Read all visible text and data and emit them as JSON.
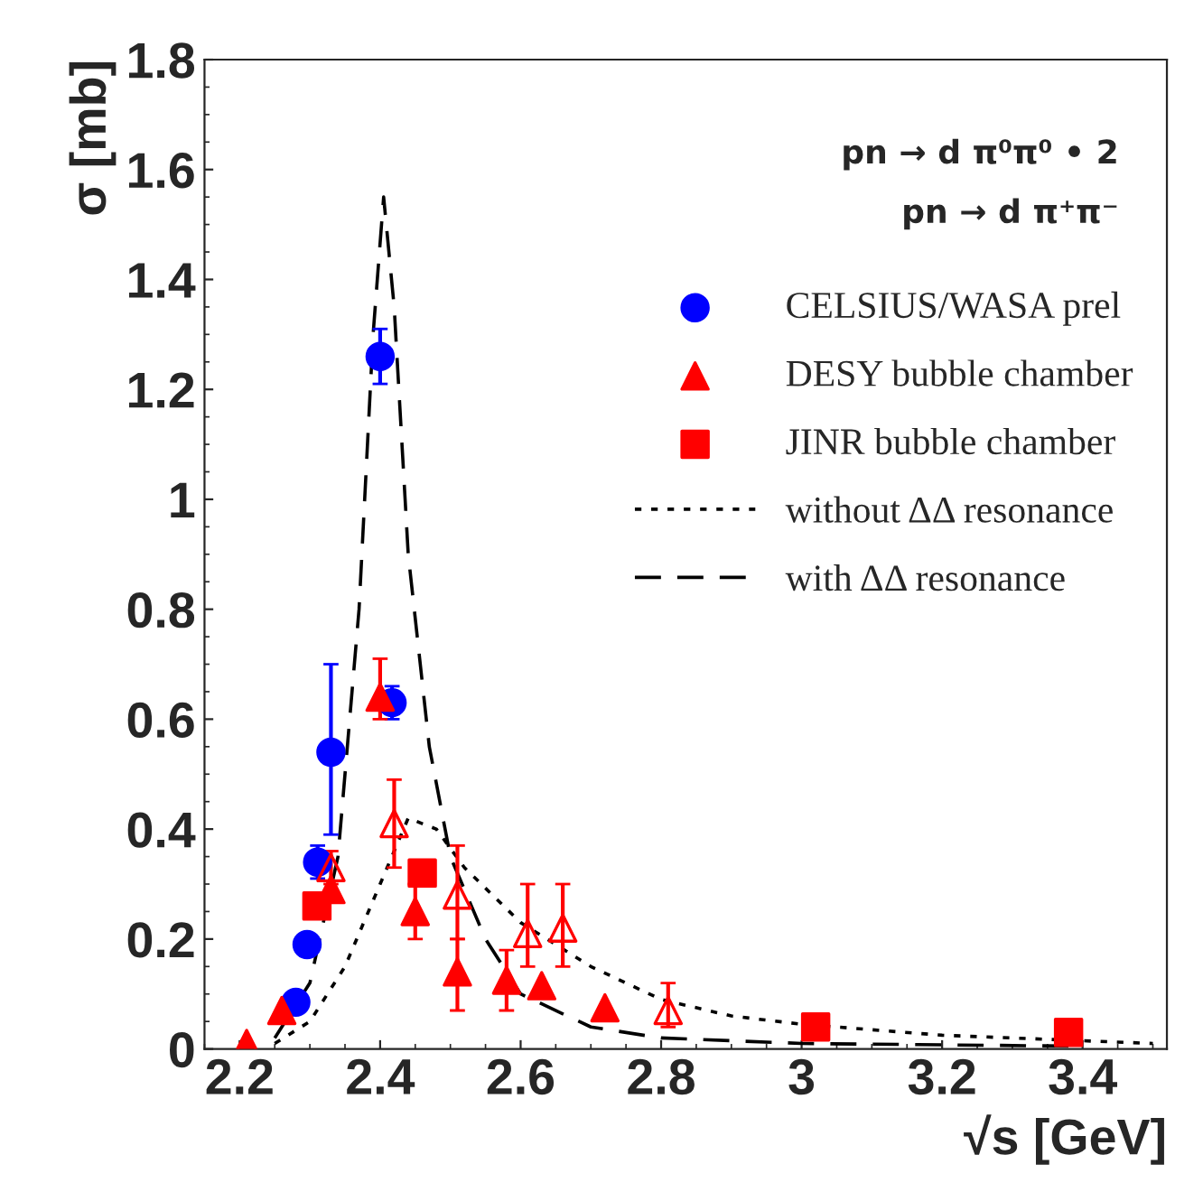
{
  "chart_data": {
    "type": "scatter",
    "xlabel": "√s [GeV]",
    "ylabel": "σ [mb]",
    "xlim": [
      2.15,
      3.52
    ],
    "ylim": [
      0,
      1.8
    ],
    "xticks": [
      2.2,
      2.4,
      2.6,
      2.8,
      3,
      3.2,
      3.4
    ],
    "yticks": [
      0,
      0.2,
      0.4,
      0.6,
      0.8,
      1,
      1.2,
      1.4,
      1.6,
      1.8
    ],
    "grid": false,
    "legend": "top right",
    "annotations": [
      "pn → d π⁰π⁰ • 2",
      "pn → d π⁺π⁻"
    ],
    "series": [
      {
        "name": "CELSIUS/WASA prel",
        "marker": "circle",
        "color": "#0000ff",
        "x": [
          2.28,
          2.296,
          2.311,
          2.33,
          2.4,
          2.417
        ],
        "values": [
          0.085,
          0.19,
          0.34,
          0.54,
          1.26,
          0.63
        ],
        "errors": [
          null,
          null,
          0.03,
          [
            0.39,
            0.7
          ],
          0.05,
          0.03
        ]
      },
      {
        "name": "DESY bubble chamber",
        "marker": "triangle",
        "color": "#ff0000",
        "x": [
          2.21,
          2.26,
          2.33,
          2.4,
          2.45,
          2.51,
          2.58,
          2.63,
          2.72
        ],
        "values": [
          0.01,
          0.07,
          0.29,
          0.64,
          0.25,
          0.14,
          0.125,
          0.115,
          0.075
        ],
        "errors": [
          null,
          null,
          null,
          [
            0.6,
            0.71
          ],
          [
            0.2,
            0.3
          ],
          [
            0.07,
            0.2
          ],
          [
            0.07,
            0.18
          ],
          null,
          null
        ]
      },
      {
        "marker": "triangle",
        "color": "#ff0000",
        "x": [
          2.33,
          2.42,
          2.51,
          2.61,
          2.66,
          2.81
        ],
        "values": [
          0.33,
          0.41,
          0.28,
          0.21,
          0.22,
          0.07
        ],
        "errors": [
          [
            0.3,
            0.36
          ],
          [
            0.33,
            0.49
          ],
          [
            0.2,
            0.37
          ],
          [
            0.15,
            0.3
          ],
          [
            0.15,
            0.3
          ],
          [
            0.04,
            0.12
          ]
        ]
      },
      {
        "name": "JINR bubble chamber",
        "marker": "square",
        "color": "#ff0000",
        "x": [
          2.31,
          2.46,
          3.02,
          3.38
        ],
        "values": [
          0.26,
          0.32,
          0.04,
          0.03
        ]
      },
      {
        "name": "without ΔΔ resonance",
        "type": "line",
        "line_style": "dotted",
        "color": "#000000",
        "x": [
          2.25,
          2.3,
          2.35,
          2.4,
          2.44,
          2.48,
          2.52,
          2.6,
          2.7,
          2.8,
          2.9,
          3.0,
          3.2,
          3.4,
          3.5
        ],
        "values": [
          0.01,
          0.05,
          0.15,
          0.3,
          0.42,
          0.4,
          0.33,
          0.23,
          0.15,
          0.09,
          0.06,
          0.045,
          0.025,
          0.015,
          0.01
        ]
      },
      {
        "name": "with ΔΔ resonance",
        "type": "line",
        "line_style": "dashed",
        "color": "#000000",
        "x": [
          2.25,
          2.3,
          2.34,
          2.37,
          2.39,
          2.405,
          2.42,
          2.44,
          2.47,
          2.5,
          2.55,
          2.6,
          2.7,
          2.8,
          3.0,
          3.4
        ],
        "values": [
          0.02,
          0.12,
          0.35,
          0.8,
          1.3,
          1.55,
          1.35,
          0.9,
          0.55,
          0.35,
          0.2,
          0.1,
          0.04,
          0.02,
          0.01,
          0.005
        ]
      }
    ]
  }
}
